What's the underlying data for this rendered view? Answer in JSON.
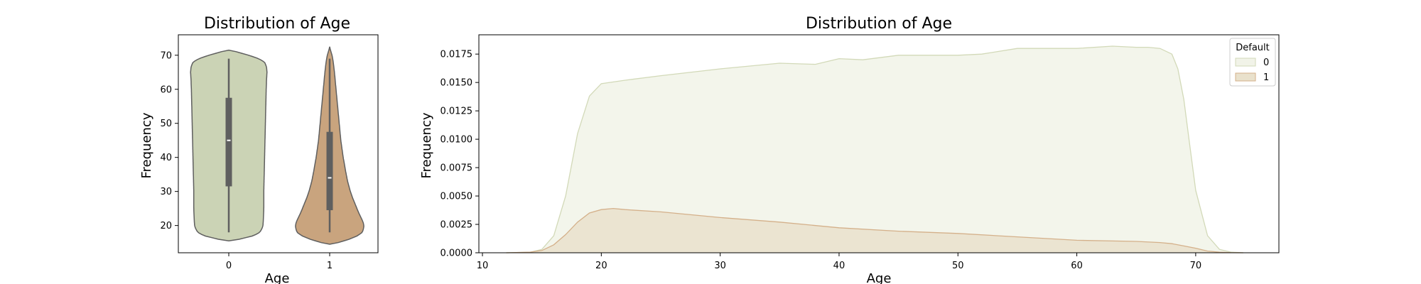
{
  "chart_data": [
    {
      "type": "violin",
      "title": "Distribution of Age",
      "xlabel": "Age",
      "ylabel": "Frequency",
      "categories": [
        "0",
        "1"
      ],
      "ylim": [
        12,
        76
      ],
      "yticks": [
        20,
        30,
        40,
        50,
        60,
        70
      ],
      "colors": [
        "#cbd3b5",
        "#c9a47e"
      ],
      "outline_color": "#5f5f5f",
      "stats": [
        {
          "category": "0",
          "min": 18,
          "q1": 31.5,
          "median": 45,
          "q3": 57.5,
          "max": 69,
          "kde_min": 15.5,
          "kde_max": 71.5
        },
        {
          "category": "1",
          "min": 18,
          "q1": 24.5,
          "median": 34,
          "q3": 47.5,
          "max": 69,
          "kde_min": 14.5,
          "kde_max": 72.5
        }
      ],
      "density_profiles": [
        {
          "category": "0",
          "ages": [
            15.5,
            16,
            17,
            18,
            19,
            20,
            22,
            25,
            30,
            35,
            40,
            45,
            50,
            55,
            60,
            63,
            65,
            66.5,
            68,
            69,
            70,
            71,
            71.5
          ],
          "half_width": [
            0.0,
            0.28,
            0.62,
            0.78,
            0.83,
            0.86,
            0.87,
            0.88,
            0.88,
            0.89,
            0.9,
            0.91,
            0.92,
            0.93,
            0.94,
            0.95,
            0.96,
            0.95,
            0.9,
            0.75,
            0.5,
            0.2,
            0.0
          ]
        },
        {
          "category": "1",
          "ages": [
            14.5,
            15,
            16,
            17,
            18,
            19,
            20,
            21,
            22,
            24,
            26,
            28,
            30,
            33,
            36,
            40,
            45,
            50,
            55,
            60,
            65,
            68,
            70,
            71.5,
            72.5
          ],
          "half_width": [
            0.0,
            0.22,
            0.5,
            0.7,
            0.82,
            0.85,
            0.86,
            0.84,
            0.8,
            0.72,
            0.65,
            0.58,
            0.52,
            0.45,
            0.4,
            0.34,
            0.28,
            0.24,
            0.2,
            0.16,
            0.12,
            0.09,
            0.06,
            0.02,
            0.0
          ]
        }
      ]
    },
    {
      "type": "area",
      "title": "Distribution of Age",
      "xlabel": "Age",
      "ylabel": "Frequency",
      "xlim": [
        9.7,
        77
      ],
      "ylim": [
        0,
        0.0192
      ],
      "xticks": [
        10,
        20,
        30,
        40,
        50,
        60,
        70
      ],
      "yticks": [
        "0.0000",
        "0.0025",
        "0.0050",
        "0.0075",
        "0.0100",
        "0.0125",
        "0.0150",
        "0.0175"
      ],
      "legend": {
        "title": "Default",
        "position": "upper-right",
        "entries": [
          "0",
          "1"
        ]
      },
      "series": [
        {
          "name": "0",
          "fill": "#f1f3e8",
          "stroke": "#d2d9b8",
          "x": [
            12,
            14,
            15,
            16,
            17,
            18,
            19,
            20,
            22,
            25,
            30,
            35,
            38,
            40,
            42,
            45,
            50,
            52,
            55,
            60,
            63,
            65,
            66,
            67,
            68,
            68.5,
            69,
            69.5,
            70,
            71,
            72,
            73,
            74
          ],
          "y": [
            0,
            5e-05,
            0.0003,
            0.0015,
            0.005,
            0.0105,
            0.0138,
            0.0149,
            0.0152,
            0.0156,
            0.0162,
            0.0167,
            0.0166,
            0.0171,
            0.017,
            0.0174,
            0.0174,
            0.0175,
            0.018,
            0.018,
            0.0182,
            0.0181,
            0.0181,
            0.018,
            0.0175,
            0.0162,
            0.0135,
            0.0095,
            0.0055,
            0.0015,
            0.0003,
            5e-05,
            0
          ]
        },
        {
          "name": "1",
          "fill": "#e9e1cc",
          "stroke": "#d4b08a",
          "x": [
            12,
            14,
            15,
            16,
            17,
            18,
            19,
            20,
            21,
            22,
            25,
            30,
            35,
            40,
            45,
            50,
            55,
            60,
            65,
            67,
            68,
            69,
            70,
            71,
            72,
            73,
            74
          ],
          "y": [
            0,
            5e-05,
            0.0002,
            0.0007,
            0.0016,
            0.0027,
            0.0035,
            0.0038,
            0.0039,
            0.0038,
            0.0036,
            0.0031,
            0.0027,
            0.0022,
            0.0019,
            0.0017,
            0.0014,
            0.0011,
            0.001,
            0.0009,
            0.0008,
            0.0006,
            0.0004,
            0.00015,
            5e-05,
            1e-05,
            0
          ]
        }
      ]
    }
  ]
}
